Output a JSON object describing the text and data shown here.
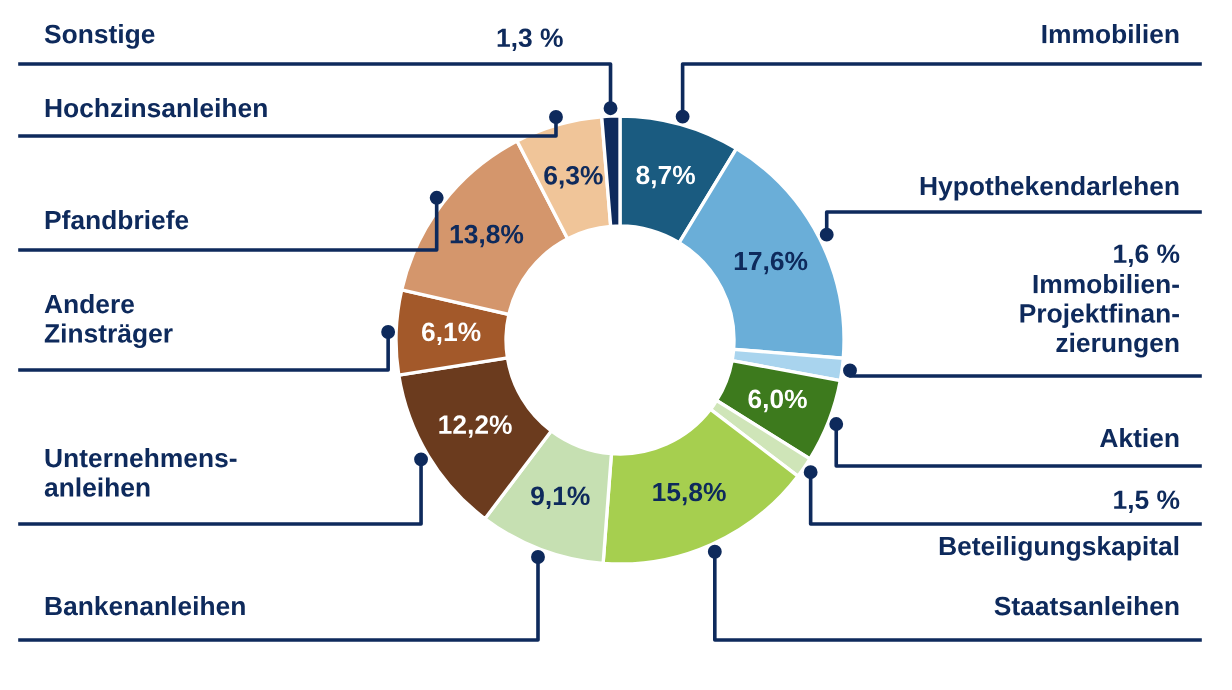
{
  "chart_data": {
    "type": "donut",
    "categories": [
      "Immobilien",
      "Hypothekendarlehen",
      "Immobilien-\nProjektfinan-\nzierungen",
      "Aktien",
      "Beteiligungskapital",
      "Staatsanleihen",
      "Bankenanleihen",
      "Unternehmens-\nanleihen",
      "Andere\nZinsträger",
      "Pfandbriefe",
      "Hochzinsanleihen",
      "Sonstige"
    ],
    "values": [
      8.7,
      17.6,
      1.6,
      6.0,
      1.5,
      15.8,
      9.1,
      12.2,
      6.1,
      13.8,
      6.3,
      1.3
    ],
    "value_labels": [
      "8,7%",
      "17,6%",
      "1,6 %",
      "6,0%",
      "1,5 %",
      "15,8%",
      "9,1%",
      "12,2%",
      "6,1%",
      "13,8%",
      "6,3%",
      "1,3 %"
    ],
    "colors": [
      "#1a5b80",
      "#6aaed8",
      "#a9d4ee",
      "#3d7a1d",
      "#cfe5b8",
      "#a6cf4f",
      "#c6e0b2",
      "#6b3b1e",
      "#a3592a",
      "#d4966c",
      "#f0c599",
      "#0e2a5c"
    ]
  }
}
